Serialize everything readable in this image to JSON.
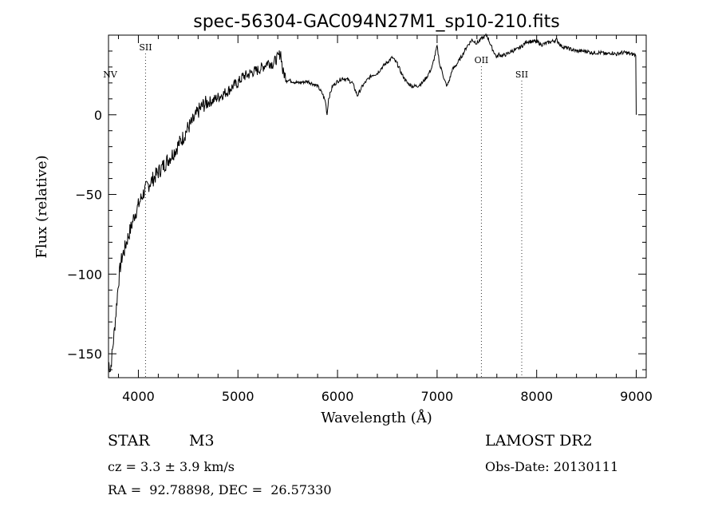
{
  "chart_data": {
    "type": "line",
    "title": "spec-56304-GAC094N27M1_sp10-210.fits",
    "xlabel": "Wavelength (Å)",
    "ylabel": "Flux (relative)",
    "xlim": [
      3700,
      9100
    ],
    "ylim": [
      -165,
      50
    ],
    "xticks": [
      4000,
      5000,
      6000,
      7000,
      8000,
      9000
    ],
    "yticks": [
      0,
      -50,
      -100,
      -150
    ],
    "grid": false,
    "series": [
      {
        "x": [
          3700,
          3720,
          3740,
          3760,
          3780,
          3800,
          3820,
          3840,
          3860,
          3880,
          3900,
          3930,
          3960,
          4000,
          4030,
          4060,
          4100,
          4150,
          4200,
          4250,
          4300,
          4350,
          4400,
          4450,
          4500,
          4550,
          4600,
          4650,
          4700,
          4750,
          4800,
          4850,
          4900,
          4950,
          5000,
          5050,
          5100,
          5150,
          5200,
          5250,
          5300,
          5350,
          5400,
          5430,
          5450,
          5500,
          5600,
          5700,
          5800,
          5850,
          5880,
          5895,
          5910,
          5950,
          6000,
          6050,
          6100,
          6150,
          6200,
          6250,
          6300,
          6350,
          6400,
          6450,
          6500,
          6550,
          6600,
          6650,
          6700,
          6750,
          6800,
          6850,
          6900,
          6950,
          7000,
          7030,
          7050,
          7070,
          7100,
          7130,
          7150,
          7200,
          7250,
          7300,
          7350,
          7400,
          7450,
          7500,
          7550,
          7600,
          7620,
          7650,
          7700,
          7750,
          7800,
          7850,
          7900,
          7950,
          8000,
          8050,
          8100,
          8150,
          8200,
          8250,
          8300,
          8350,
          8400,
          8450,
          8500,
          8550,
          8600,
          8650,
          8700,
          8750,
          8800,
          8850,
          8900,
          8950,
          8980,
          8995,
          9000
        ],
        "y": [
          -155,
          -160,
          -148,
          -135,
          -120,
          -105,
          -95,
          -88,
          -85,
          -80,
          -76,
          -70,
          -63,
          -57,
          -52,
          -48,
          -44,
          -40,
          -36,
          -32,
          -28,
          -24,
          -19,
          -14,
          -8,
          -4,
          2,
          6,
          8,
          9,
          11,
          13,
          15,
          18,
          20,
          24,
          25,
          27,
          28,
          30,
          33,
          32,
          36,
          39,
          27,
          22,
          20,
          21,
          18,
          13,
          8,
          0,
          10,
          18,
          21,
          23,
          22,
          20,
          12,
          18,
          22,
          25,
          26,
          30,
          33,
          36,
          32,
          25,
          20,
          18,
          18,
          20,
          24,
          30,
          43,
          30,
          28,
          22,
          18,
          23,
          28,
          32,
          37,
          43,
          47,
          45,
          48,
          50,
          42,
          36,
          38,
          37,
          38,
          40,
          41,
          43,
          46,
          46,
          46,
          44,
          45,
          46,
          47,
          43,
          42,
          41,
          40,
          40,
          40,
          39,
          39,
          39,
          38,
          39,
          38,
          39,
          39,
          38,
          38,
          37,
          0
        ]
      }
    ],
    "annotations": [
      {
        "label": "NV",
        "x": 3700,
        "level": "low"
      },
      {
        "label": "SII",
        "x": 4072,
        "level": "high"
      },
      {
        "label": "OII",
        "x": 7445,
        "level": "mid"
      },
      {
        "label": "SII",
        "x": 7850,
        "level": "low"
      }
    ]
  },
  "info": {
    "object_class": "STAR",
    "subclass": "M3",
    "survey": "LAMOST DR2",
    "cz": "cz = 3.3 ± 3.9 km/s",
    "obs_date": "Obs-Date: 20130111",
    "coords": "RA =  92.78898, DEC =  26.57330"
  }
}
